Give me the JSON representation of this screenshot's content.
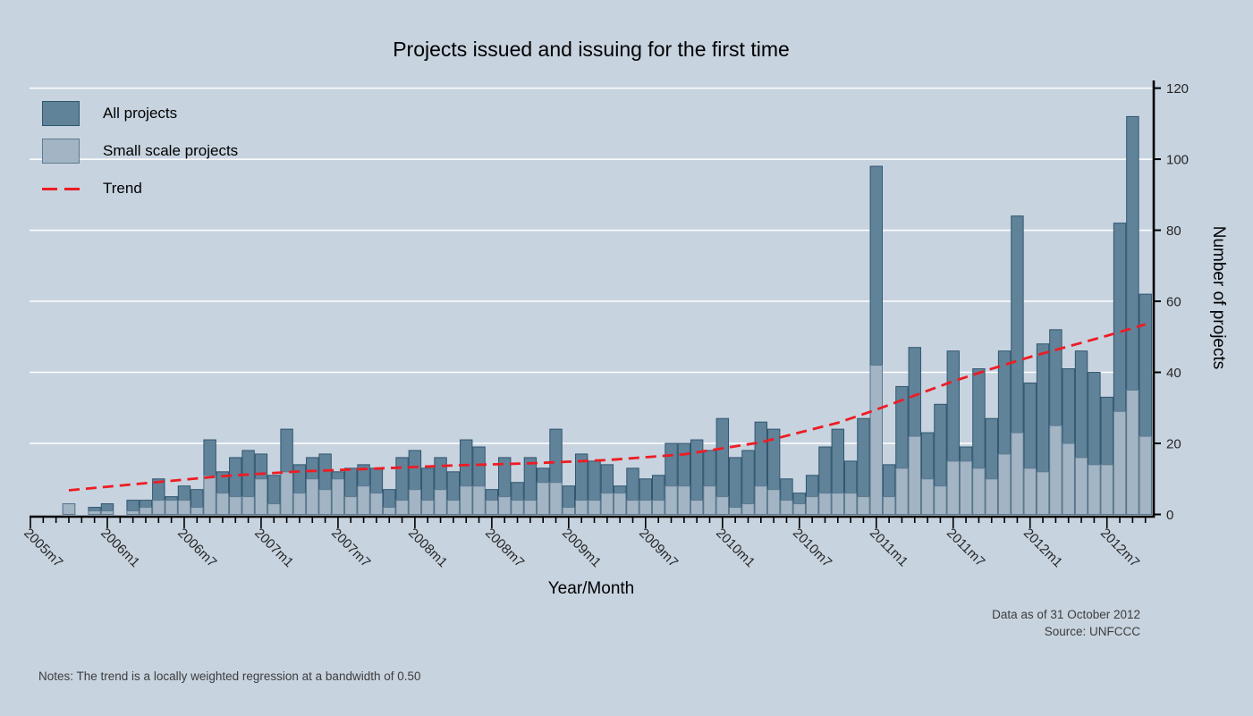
{
  "title": "Projects issued and issuing for the first time",
  "legend": {
    "all_label": "All projects",
    "small_label": "Small scale projects",
    "trend_label": "Trend"
  },
  "y_axis": {
    "title": "Number of projects",
    "ticks": [
      0,
      20,
      40,
      60,
      80,
      100,
      120
    ]
  },
  "x_axis": {
    "title": "Year/Month",
    "major_labels": [
      "2005m7",
      "2006m1",
      "2006m7",
      "2007m1",
      "2007m7",
      "2008m1",
      "2008m7",
      "2009m1",
      "2009m7",
      "2010m1",
      "2010m7",
      "2011m1",
      "2011m7",
      "2012m1",
      "2012m7"
    ]
  },
  "footnotes": {
    "data_as_of": "Data as of 31 October 2012",
    "source": "Source: UNFCCC",
    "notes": "Notes: The trend is a locally weighted regression at a bandwidth of 0.50"
  },
  "colors": {
    "background": "#c7d3df",
    "all_fill": "#61839a",
    "all_stroke": "#2f566e",
    "small_fill": "#a3b5c4",
    "small_stroke": "#5d7a90",
    "trend": "#ee1c23",
    "grid": "#ffffff",
    "axis": "#000000",
    "tick_text": "#262626"
  },
  "chart_data": {
    "type": "bar",
    "title": "Projects issued and issuing for the first time",
    "xlabel": "Year/Month",
    "ylabel": "Number of projects",
    "ylim": [
      0,
      120
    ],
    "grid": "horizontal-white-lines",
    "legend_position": "top-left-inside",
    "bar_mode": "overlaid",
    "categories": [
      "2005m7",
      "2005m8",
      "2005m9",
      "2005m10",
      "2005m11",
      "2005m12",
      "2006m1",
      "2006m2",
      "2006m3",
      "2006m4",
      "2006m5",
      "2006m6",
      "2006m7",
      "2006m8",
      "2006m9",
      "2006m10",
      "2006m11",
      "2006m12",
      "2007m1",
      "2007m2",
      "2007m3",
      "2007m4",
      "2007m5",
      "2007m6",
      "2007m7",
      "2007m8",
      "2007m9",
      "2007m10",
      "2007m11",
      "2007m12",
      "2008m1",
      "2008m2",
      "2008m3",
      "2008m4",
      "2008m5",
      "2008m6",
      "2008m7",
      "2008m8",
      "2008m9",
      "2008m10",
      "2008m11",
      "2008m12",
      "2009m1",
      "2009m2",
      "2009m3",
      "2009m4",
      "2009m5",
      "2009m6",
      "2009m7",
      "2009m8",
      "2009m9",
      "2009m10",
      "2009m11",
      "2009m12",
      "2010m1",
      "2010m2",
      "2010m3",
      "2010m4",
      "2010m5",
      "2010m6",
      "2010m7",
      "2010m8",
      "2010m9",
      "2010m10",
      "2010m11",
      "2010m12",
      "2011m1",
      "2011m2",
      "2011m3",
      "2011m4",
      "2011m5",
      "2011m6",
      "2011m7",
      "2011m8",
      "2011m9",
      "2011m10",
      "2011m11",
      "2011m12",
      "2012m1",
      "2012m2",
      "2012m3",
      "2012m4",
      "2012m5",
      "2012m6",
      "2012m7",
      "2012m8",
      "2012m9",
      "2012m10"
    ],
    "series": [
      {
        "name": "All projects",
        "values": [
          0,
          0,
          0,
          3,
          0,
          2,
          3,
          0,
          4,
          4,
          10,
          5,
          8,
          7,
          21,
          12,
          16,
          18,
          17,
          11,
          24,
          14,
          16,
          17,
          12,
          13,
          14,
          13,
          7,
          16,
          18,
          13,
          16,
          12,
          21,
          19,
          7,
          16,
          9,
          16,
          13,
          24,
          8,
          17,
          15,
          14,
          8,
          13,
          10,
          11,
          20,
          20,
          21,
          18,
          27,
          16,
          18,
          26,
          24,
          10,
          6,
          11,
          19,
          24,
          15,
          27,
          98,
          14,
          36,
          47,
          23,
          31,
          46,
          19,
          41,
          27,
          46,
          84,
          37,
          48,
          52,
          41,
          46,
          40,
          33,
          82,
          112,
          62
        ]
      },
      {
        "name": "Small scale projects",
        "values": [
          0,
          0,
          0,
          3,
          0,
          1,
          1,
          0,
          1,
          2,
          4,
          4,
          4,
          2,
          11,
          6,
          5,
          5,
          10,
          3,
          12,
          6,
          10,
          7,
          10,
          5,
          8,
          6,
          2,
          4,
          7,
          4,
          7,
          4,
          8,
          8,
          4,
          5,
          4,
          4,
          9,
          9,
          2,
          4,
          4,
          6,
          6,
          4,
          4,
          4,
          8,
          8,
          4,
          8,
          5,
          2,
          3,
          8,
          7,
          4,
          3,
          5,
          6,
          6,
          6,
          5,
          42,
          5,
          13,
          22,
          10,
          8,
          15,
          15,
          13,
          10,
          17,
          23,
          13,
          12,
          25,
          20,
          16,
          14,
          14,
          29,
          35,
          22
        ]
      }
    ],
    "trend_series": {
      "name": "Trend",
      "anchor_points": [
        [
          3,
          6.8
        ],
        [
          9,
          8.8
        ],
        [
          15,
          10.8
        ],
        [
          21,
          12.1
        ],
        [
          27,
          12.9
        ],
        [
          33,
          13.8
        ],
        [
          39,
          14.4
        ],
        [
          45,
          15.3
        ],
        [
          51,
          16.9
        ],
        [
          57,
          20.3
        ],
        [
          63,
          25.8
        ],
        [
          66,
          29.5
        ],
        [
          69,
          33.5
        ],
        [
          72,
          37.5
        ],
        [
          75,
          41.0
        ],
        [
          78,
          44.3
        ],
        [
          81,
          47.3
        ],
        [
          84,
          50.3
        ],
        [
          87,
          53.5
        ]
      ]
    }
  }
}
